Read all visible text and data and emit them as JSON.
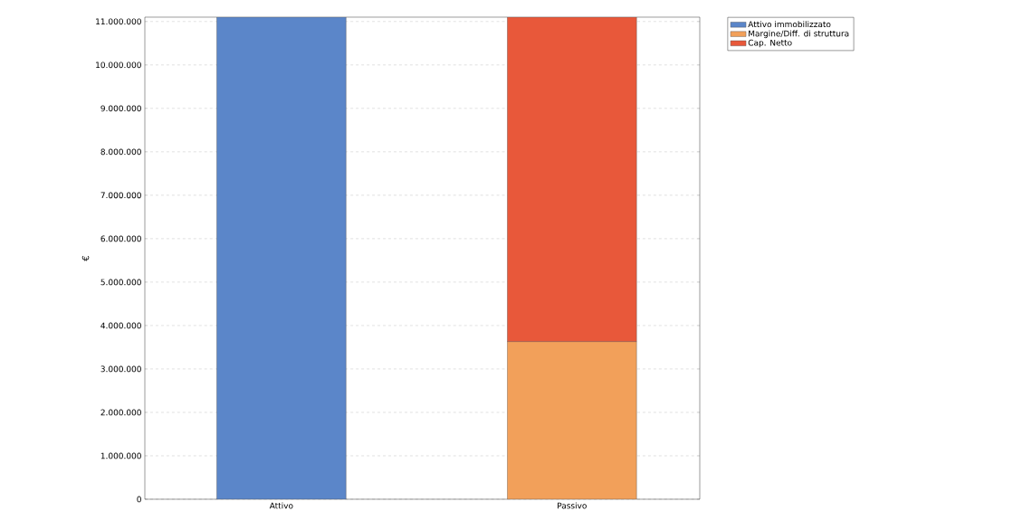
{
  "chart_data": {
    "type": "bar",
    "stacked": true,
    "ylabel": "€",
    "categories": [
      "Attivo",
      "Passivo"
    ],
    "series": [
      {
        "name": "Attivo immobilizzato",
        "color": "#5b86c9",
        "values": [
          11100000,
          null
        ]
      },
      {
        "name": "Margine/Diff. di struttura",
        "color": "#f2a05a",
        "values": [
          null,
          3630000
        ]
      },
      {
        "name": "Cap. Netto",
        "color": "#e8583a",
        "values": [
          null,
          7470000
        ]
      }
    ],
    "ylim": [
      0,
      11100000
    ],
    "yticks": [
      {
        "value": 0,
        "label": "0"
      },
      {
        "value": 1000000,
        "label": "1.000.000"
      },
      {
        "value": 2000000,
        "label": "2.000.000"
      },
      {
        "value": 3000000,
        "label": "3.000.000"
      },
      {
        "value": 4000000,
        "label": "4.000.000"
      },
      {
        "value": 5000000,
        "label": "5.000.000"
      },
      {
        "value": 6000000,
        "label": "6.000.000"
      },
      {
        "value": 7000000,
        "label": "7.000.000"
      },
      {
        "value": 8000000,
        "label": "8.000.000"
      },
      {
        "value": 9000000,
        "label": "9.000.000"
      },
      {
        "value": 10000000,
        "label": "10.000.000"
      },
      {
        "value": 11000000,
        "label": "11.000.000"
      }
    ],
    "grid": "y",
    "legend": "top right"
  }
}
